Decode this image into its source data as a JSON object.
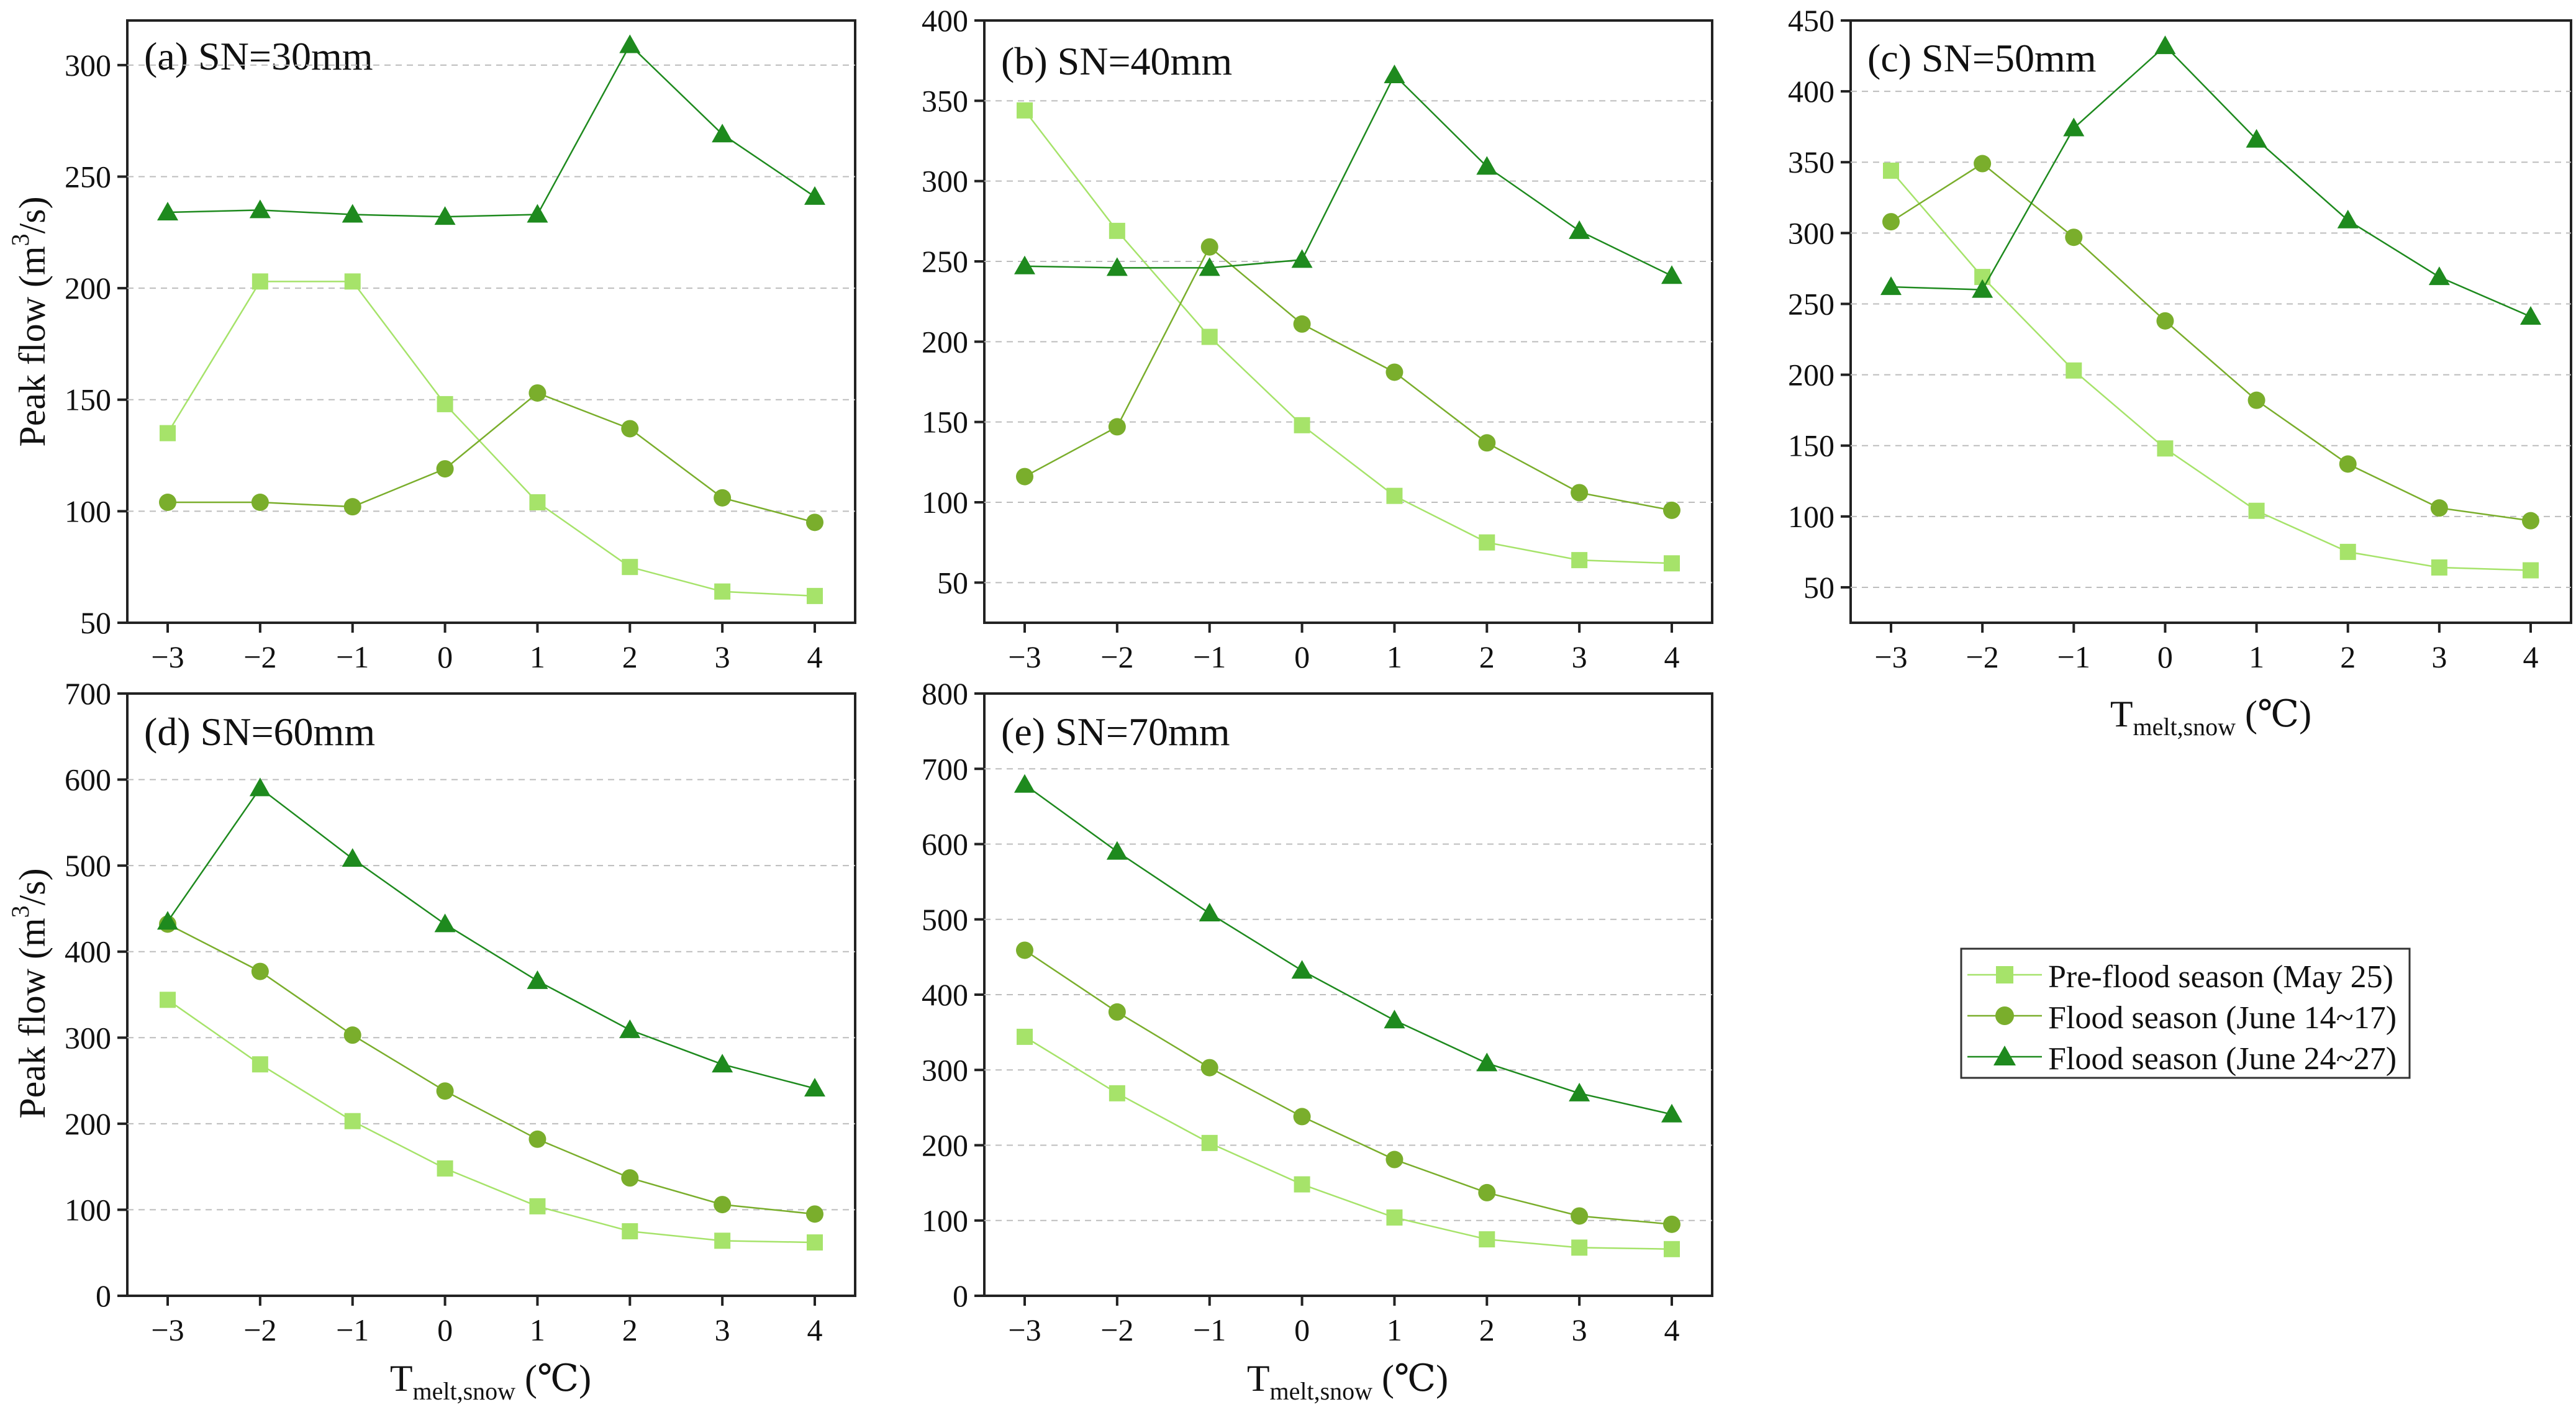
{
  "figure": {
    "legend": [
      {
        "label": "Pre-flood season (May 25)",
        "color": "#A6E36A",
        "marker": "square"
      },
      {
        "label": "Flood season (June 14~17)",
        "color": "#7AAE2C",
        "marker": "circle"
      },
      {
        "label": "Flood season (June 24~27)",
        "color": "#1E8A1E",
        "marker": "triangle"
      }
    ],
    "axis_title_x": {
      "main": "T",
      "sub": "melt,snow",
      "unit": " (℃)"
    },
    "axis_title_y": {
      "main": "Peak flow (m",
      "sup": "3",
      "rest": "/s)"
    }
  },
  "chart_data": [
    {
      "id": "a",
      "type": "line",
      "title": "(a) SN=30mm",
      "x": [
        -3,
        -2,
        -1,
        0,
        1,
        2,
        3,
        4
      ],
      "xticklabels": [
        "−3",
        "−2",
        "−1",
        "0",
        "1",
        "2",
        "3",
        "4"
      ],
      "ylim": [
        50,
        320
      ],
      "yticks": [
        50,
        100,
        150,
        200,
        250,
        300
      ],
      "series": [
        {
          "name": "Pre-flood season (May 25)",
          "values": [
            135,
            203,
            203,
            148,
            104,
            75,
            64,
            62
          ]
        },
        {
          "name": "Flood season (June 14~17)",
          "values": [
            104,
            104,
            102,
            119,
            153,
            137,
            106,
            95
          ]
        },
        {
          "name": "Flood season (June 24~27)",
          "values": [
            234,
            235,
            233,
            232,
            233,
            309,
            269,
            241
          ]
        }
      ]
    },
    {
      "id": "b",
      "type": "line",
      "title": "(b) SN=40mm",
      "x": [
        -3,
        -2,
        -1,
        0,
        1,
        2,
        3,
        4
      ],
      "xticklabels": [
        "−3",
        "−2",
        "−1",
        "0",
        "1",
        "2",
        "3",
        "4"
      ],
      "ylim": [
        25,
        400
      ],
      "yticks": [
        50,
        100,
        150,
        200,
        250,
        300,
        350,
        400
      ],
      "series": [
        {
          "name": "Pre-flood season (May 25)",
          "values": [
            344,
            269,
            203,
            148,
            104,
            75,
            64,
            62
          ]
        },
        {
          "name": "Flood season (June 14~17)",
          "values": [
            116,
            147,
            259,
            211,
            181,
            137,
            106,
            95
          ]
        },
        {
          "name": "Flood season (June 24~27)",
          "values": [
            247,
            246,
            246,
            251,
            366,
            309,
            269,
            241
          ]
        }
      ]
    },
    {
      "id": "c",
      "type": "line",
      "title": "(c) SN=50mm",
      "x": [
        -3,
        -2,
        -1,
        0,
        1,
        2,
        3,
        4
      ],
      "xticklabels": [
        "−3",
        "−2",
        "−1",
        "0",
        "1",
        "2",
        "3",
        "4"
      ],
      "ylim": [
        25,
        450
      ],
      "yticks": [
        50,
        100,
        150,
        200,
        250,
        300,
        350,
        400,
        450
      ],
      "series": [
        {
          "name": "Pre-flood season (May 25)",
          "values": [
            344,
            269,
            203,
            148,
            104,
            75,
            64,
            62
          ]
        },
        {
          "name": "Flood season (June 14~17)",
          "values": [
            308,
            349,
            297,
            238,
            182,
            137,
            106,
            97
          ]
        },
        {
          "name": "Flood season (June 24~27)",
          "values": [
            262,
            260,
            374,
            432,
            366,
            309,
            269,
            241
          ]
        }
      ]
    },
    {
      "id": "d",
      "type": "line",
      "title": "(d) SN=60mm",
      "x": [
        -3,
        -2,
        -1,
        0,
        1,
        2,
        3,
        4
      ],
      "xticklabels": [
        "−3",
        "−2",
        "−1",
        "0",
        "1",
        "2",
        "3",
        "4"
      ],
      "ylim": [
        0,
        700
      ],
      "yticks": [
        0,
        100,
        200,
        300,
        400,
        500,
        600,
        700
      ],
      "series": [
        {
          "name": "Pre-flood season (May 25)",
          "values": [
            344,
            269,
            203,
            148,
            104,
            75,
            64,
            62
          ]
        },
        {
          "name": "Flood season (June 14~17)",
          "values": [
            432,
            377,
            303,
            238,
            182,
            137,
            106,
            95
          ]
        },
        {
          "name": "Flood season (June 24~27)",
          "values": [
            435,
            590,
            508,
            432,
            366,
            309,
            269,
            241
          ]
        }
      ]
    },
    {
      "id": "e",
      "type": "line",
      "title": "(e) SN=70mm",
      "x": [
        -3,
        -2,
        -1,
        0,
        1,
        2,
        3,
        4
      ],
      "xticklabels": [
        "−3",
        "−2",
        "−1",
        "0",
        "1",
        "2",
        "3",
        "4"
      ],
      "ylim": [
        0,
        800
      ],
      "yticks": [
        0,
        100,
        200,
        300,
        400,
        500,
        600,
        700,
        800
      ],
      "series": [
        {
          "name": "Pre-flood season (May 25)",
          "values": [
            344,
            269,
            203,
            148,
            104,
            75,
            64,
            62
          ]
        },
        {
          "name": "Flood season (June 14~17)",
          "values": [
            459,
            377,
            303,
            238,
            181,
            137,
            106,
            95
          ]
        },
        {
          "name": "Flood season (June 24~27)",
          "values": [
            679,
            590,
            508,
            432,
            366,
            309,
            269,
            241
          ]
        }
      ]
    }
  ]
}
